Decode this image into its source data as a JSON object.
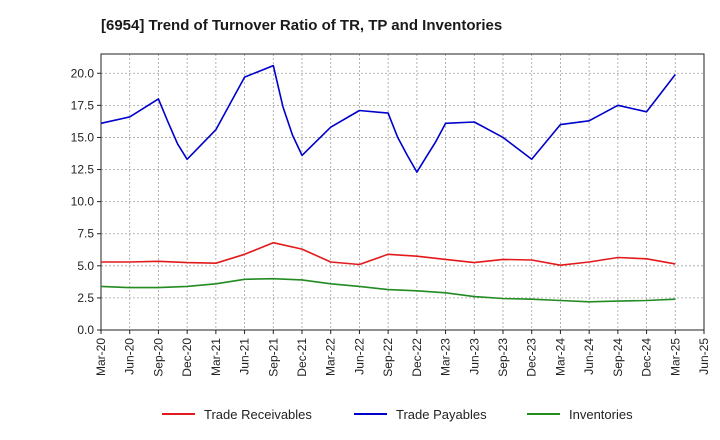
{
  "chart_data": {
    "type": "line",
    "title": "[6954]  Trend of Turnover Ratio of TR, TP and Inventories",
    "xlabel": "",
    "ylabel": "",
    "ylim": [
      0,
      21.5
    ],
    "yticks": [
      "0.0",
      "2.5",
      "5.0",
      "7.5",
      "10.0",
      "12.5",
      "15.0",
      "17.5",
      "20.0"
    ],
    "ytick_values": [
      0,
      2.5,
      5,
      7.5,
      10,
      12.5,
      15,
      17.5,
      20
    ],
    "xticks": [
      "Mar-20",
      "Jun-20",
      "Sep-20",
      "Dec-20",
      "Mar-21",
      "Jun-21",
      "Sep-21",
      "Dec-21",
      "Mar-22",
      "Jun-22",
      "Sep-22",
      "Dec-22",
      "Mar-23",
      "Jun-23",
      "Sep-23",
      "Dec-23",
      "Mar-24",
      "Jun-24",
      "Sep-24",
      "Dec-24",
      "Mar-25",
      "Jun-25"
    ],
    "grid": true,
    "legend_position": "bottom",
    "series": [
      {
        "name": "Trade Receivables",
        "color": "#e31a1c",
        "x": [
          "Mar-20",
          "Jun-20",
          "Sep-20",
          "Dec-20",
          "Mar-21",
          "Jun-21",
          "Sep-21",
          "Dec-21",
          "Mar-22",
          "Jun-22",
          "Sep-22",
          "Dec-22",
          "Mar-23",
          "Jun-23",
          "Sep-23",
          "Dec-23",
          "Mar-24",
          "Jun-24",
          "Sep-24",
          "Dec-24",
          "Mar-25"
        ],
        "values": [
          5.3,
          5.3,
          5.35,
          5.25,
          5.2,
          5.9,
          6.8,
          6.3,
          5.3,
          5.1,
          5.9,
          5.75,
          5.5,
          5.25,
          5.5,
          5.45,
          5.05,
          5.3,
          5.65,
          5.55,
          5.15
        ]
      },
      {
        "name": "Trade Payables",
        "color": "#0000cc",
        "x": [
          "Mar-20",
          "Jun-20",
          "Sep-20",
          "Oct-20",
          "Nov-20",
          "Dec-20",
          "Mar-21",
          "Jun-21",
          "Sep-21",
          "Oct-21",
          "Nov-21",
          "Dec-21",
          "Mar-22",
          "Jun-22",
          "Sep-22",
          "Oct-22",
          "Nov-22",
          "Dec-22",
          "Jan-23",
          "Feb-23",
          "Mar-23",
          "Jun-23",
          "Sep-23",
          "Dec-23",
          "Mar-24",
          "Jun-24",
          "Sep-24",
          "Dec-24",
          "Mar-25"
        ],
        "values": [
          16.1,
          16.6,
          18.0,
          16.2,
          14.5,
          13.3,
          15.6,
          19.7,
          20.6,
          17.4,
          15.2,
          13.6,
          15.8,
          17.1,
          16.9,
          15.0,
          13.6,
          12.3,
          13.5,
          14.7,
          16.1,
          16.2,
          15.0,
          13.3,
          16.0,
          16.3,
          17.5,
          17.0,
          19.9
        ]
      },
      {
        "name": "Inventories",
        "color": "#228b22",
        "x": [
          "Mar-20",
          "Jun-20",
          "Sep-20",
          "Dec-20",
          "Mar-21",
          "Jun-21",
          "Sep-21",
          "Dec-21",
          "Mar-22",
          "Jun-22",
          "Sep-22",
          "Dec-22",
          "Mar-23",
          "Jun-23",
          "Sep-23",
          "Dec-23",
          "Mar-24",
          "Jun-24",
          "Sep-24",
          "Dec-24",
          "Mar-25"
        ],
        "values": [
          3.4,
          3.3,
          3.3,
          3.4,
          3.6,
          3.95,
          4.0,
          3.9,
          3.6,
          3.4,
          3.15,
          3.05,
          2.9,
          2.6,
          2.45,
          2.4,
          2.3,
          2.2,
          2.25,
          2.3,
          2.4
        ]
      }
    ]
  }
}
